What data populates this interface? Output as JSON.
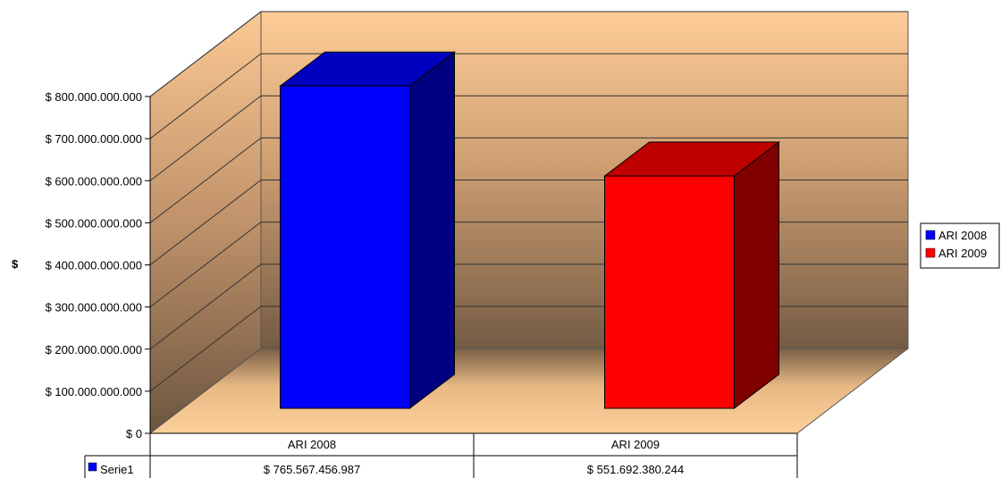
{
  "chart_data": {
    "type": "bar",
    "categories": [
      "ARI 2008",
      "ARI 2009"
    ],
    "series": [
      {
        "name": "Serie1",
        "values": [
          765567456987,
          551692380244
        ]
      }
    ],
    "value_labels": [
      "$ 765.567.456.987",
      "$ 551.692.380.244"
    ],
    "bar_colors": [
      "#0000ff",
      "#ff0000"
    ],
    "ylabel": "$",
    "ylim": [
      0,
      800000000000
    ],
    "y_ticks": [
      "$ 0",
      "$ 100.000.000.000",
      "$ 200.000.000.000",
      "$ 300.000.000.000",
      "$ 400.000.000.000",
      "$ 500.000.000.000",
      "$ 600.000.000.000",
      "$ 700.000.000.000",
      "$ 800.000.000.000"
    ],
    "legend": [
      {
        "label": "ARI 2008",
        "color": "#0000ff"
      },
      {
        "label": "ARI 2009",
        "color": "#ff0000"
      }
    ],
    "legend_position": "right",
    "grid": true,
    "style": "3d",
    "data_table": true
  }
}
